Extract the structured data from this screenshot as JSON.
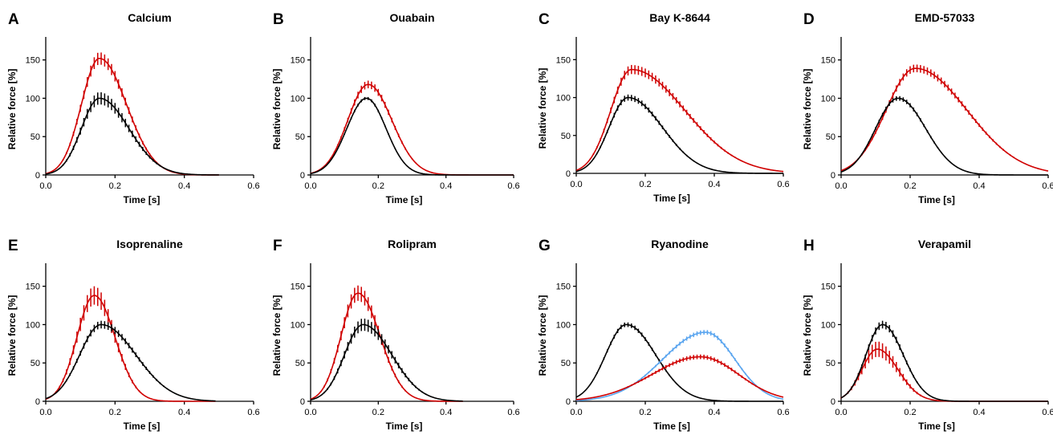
{
  "figure": {
    "background": "#ffffff"
  },
  "chart_data": [
    {
      "letter": "A",
      "title": "Calcium",
      "type": "line",
      "xlabel": "Time [s]",
      "ylabel": "Relative force [%]",
      "xlim": [
        0,
        0.6
      ],
      "ylim": [
        0,
        180
      ],
      "xticks": [
        "0.0",
        "0.2",
        "0.4",
        "0.6"
      ],
      "yticks": [
        "0",
        "50",
        "100",
        "150"
      ],
      "series": [
        {
          "color": "#d00000",
          "peak": 152,
          "peak_time": 0.155,
          "rise_sd": 0.052,
          "fall_sd": 0.078,
          "start": 0.0,
          "end": 0.5,
          "error": 8
        },
        {
          "color": "#000000",
          "peak": 100,
          "peak_time": 0.155,
          "rise_sd": 0.052,
          "fall_sd": 0.085,
          "start": 0.0,
          "end": 0.5,
          "error": 8
        }
      ]
    },
    {
      "letter": "B",
      "title": "Ouabain",
      "type": "line",
      "xlabel": "Time [s]",
      "ylabel": "Relative force [%]",
      "xlim": [
        0,
        0.6
      ],
      "ylim": [
        0,
        180
      ],
      "xticks": [
        "0.0",
        "0.2",
        "0.4",
        "0.6"
      ],
      "yticks": [
        "0",
        "50",
        "100",
        "150"
      ],
      "series": [
        {
          "color": "#d00000",
          "peak": 118,
          "peak_time": 0.17,
          "rise_sd": 0.06,
          "fall_sd": 0.07,
          "start": 0.0,
          "end": 0.6,
          "error": 5
        },
        {
          "color": "#000000",
          "peak": 100,
          "peak_time": 0.165,
          "rise_sd": 0.058,
          "fall_sd": 0.058,
          "start": 0.0,
          "end": 0.6,
          "error": 2
        }
      ]
    },
    {
      "letter": "C",
      "title": "Bay K-8644",
      "type": "line",
      "xlabel": "Time [s]",
      "ylabel": "Relative force [%]",
      "xlim": [
        0,
        0.6
      ],
      "ylim": [
        0,
        180
      ],
      "xticks": [
        "0.0",
        "0.2",
        "0.4",
        "0.6"
      ],
      "yticks": [
        "0",
        "50",
        "100",
        "150"
      ],
      "series": [
        {
          "color": "#d00000",
          "peak": 137,
          "peak_time": 0.16,
          "rise_sd": 0.06,
          "fall_sd": 0.155,
          "start": 0.0,
          "end": 0.6,
          "error": 6
        },
        {
          "color": "#000000",
          "peak": 100,
          "peak_time": 0.15,
          "rise_sd": 0.055,
          "fall_sd": 0.1,
          "start": 0.0,
          "end": 0.6,
          "error": 4
        }
      ]
    },
    {
      "letter": "D",
      "title": "EMD-57033",
      "type": "line",
      "xlabel": "Time [s]",
      "ylabel": "Relative force [%]",
      "xlim": [
        0,
        0.6
      ],
      "ylim": [
        0,
        180
      ],
      "xticks": [
        "0.0",
        "0.2",
        "0.4",
        "0.6"
      ],
      "yticks": [
        "0",
        "50",
        "100",
        "150"
      ],
      "series": [
        {
          "color": "#d00000",
          "peak": 139,
          "peak_time": 0.215,
          "rise_sd": 0.085,
          "fall_sd": 0.15,
          "start": 0.0,
          "end": 0.6,
          "error": 5
        },
        {
          "color": "#000000",
          "peak": 100,
          "peak_time": 0.165,
          "rise_sd": 0.065,
          "fall_sd": 0.08,
          "start": 0.0,
          "end": 0.6,
          "error": 3
        }
      ]
    },
    {
      "letter": "E",
      "title": "Isoprenaline",
      "type": "line",
      "xlabel": "Time [s]",
      "ylabel": "Relative force [%]",
      "xlim": [
        0,
        0.6
      ],
      "ylim": [
        0,
        180
      ],
      "xticks": [
        "0.0",
        "0.2",
        "0.4",
        "0.6"
      ],
      "yticks": [
        "0",
        "50",
        "100",
        "150"
      ],
      "series": [
        {
          "color": "#d00000",
          "peak": 138,
          "peak_time": 0.14,
          "rise_sd": 0.05,
          "fall_sd": 0.06,
          "start": 0.0,
          "end": 0.49,
          "error": 12
        },
        {
          "color": "#000000",
          "peak": 100,
          "peak_time": 0.16,
          "rise_sd": 0.062,
          "fall_sd": 0.1,
          "start": 0.0,
          "end": 0.49,
          "error": 5
        }
      ]
    },
    {
      "letter": "F",
      "title": "Rolipram",
      "type": "line",
      "xlabel": "Time [s]",
      "ylabel": "Relative force [%]",
      "xlim": [
        0,
        0.6
      ],
      "ylim": [
        0,
        180
      ],
      "xticks": [
        "0.0",
        "0.2",
        "0.4",
        "0.6"
      ],
      "yticks": [
        "0",
        "50",
        "100",
        "150"
      ],
      "series": [
        {
          "color": "#d00000",
          "peak": 141,
          "peak_time": 0.14,
          "rise_sd": 0.05,
          "fall_sd": 0.065,
          "start": 0.0,
          "end": 0.45,
          "error": 10
        },
        {
          "color": "#000000",
          "peak": 100,
          "peak_time": 0.155,
          "rise_sd": 0.055,
          "fall_sd": 0.085,
          "start": 0.0,
          "end": 0.45,
          "error": 8
        }
      ]
    },
    {
      "letter": "G",
      "title": "Ryanodine",
      "type": "line",
      "xlabel": "Time [s]",
      "ylabel": "Relative force [%]",
      "xlim": [
        0,
        0.6
      ],
      "ylim": [
        0,
        180
      ],
      "xticks": [
        "0.0",
        "0.2",
        "0.4",
        "0.6"
      ],
      "yticks": [
        "0",
        "50",
        "100",
        "150"
      ],
      "series": [
        {
          "color": "#000000",
          "peak": 100,
          "peak_time": 0.145,
          "rise_sd": 0.06,
          "fall_sd": 0.085,
          "start": 0.0,
          "end": 0.6,
          "error": 3
        },
        {
          "color": "#5aa5ef",
          "peak": 90,
          "peak_time": 0.375,
          "rise_sd": 0.125,
          "fall_sd": 0.085,
          "start": 0.0,
          "end": 0.6,
          "error": 3
        },
        {
          "color": "#d00000",
          "peak": 58,
          "peak_time": 0.36,
          "rise_sd": 0.14,
          "fall_sd": 0.11,
          "start": 0.0,
          "end": 0.6,
          "error": 3
        }
      ]
    },
    {
      "letter": "H",
      "title": "Verapamil",
      "type": "line",
      "xlabel": "Time [s]",
      "ylabel": "Relative force [%]",
      "xlim": [
        0,
        0.6
      ],
      "ylim": [
        0,
        180
      ],
      "xticks": [
        "0.0",
        "0.2",
        "0.4",
        "0.6"
      ],
      "yticks": [
        "0",
        "50",
        "100",
        "150"
      ],
      "series": [
        {
          "color": "#d00000",
          "peak": 68,
          "peak_time": 0.105,
          "rise_sd": 0.045,
          "fall_sd": 0.06,
          "start": 0.0,
          "end": 0.6,
          "error": 10
        },
        {
          "color": "#000000",
          "peak": 100,
          "peak_time": 0.12,
          "rise_sd": 0.048,
          "fall_sd": 0.06,
          "start": 0.0,
          "end": 0.6,
          "error": 5
        }
      ]
    }
  ]
}
